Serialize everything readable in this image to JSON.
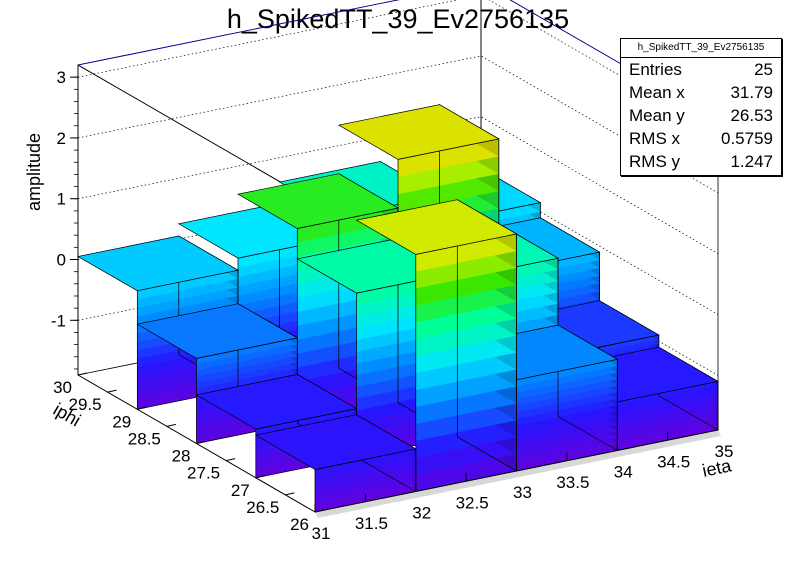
{
  "title": "h_SpikedTT_39_Ev2756135",
  "stats": {
    "name": "h_SpikedTT_39_Ev2756135",
    "rows": [
      {
        "label": "Entries",
        "value": "25"
      },
      {
        "label": "Mean x",
        "value": "31.79"
      },
      {
        "label": "Mean y",
        "value": "26.53"
      },
      {
        "label": "RMS x",
        "value": "0.5759"
      },
      {
        "label": "RMS y",
        "value": "1.247"
      }
    ]
  },
  "chart_data": {
    "type": "lego3d",
    "title": "h_SpikedTT_39_Ev2756135",
    "xlabel": "ieta",
    "ylabel": "iphi",
    "zlabel": "amplitude",
    "x_ticks": [
      "31",
      "31.5",
      "32",
      "32.5",
      "33",
      "33.5",
      "34",
      "34.5",
      "35"
    ],
    "y_ticks": [
      "26",
      "26.5",
      "27",
      "27.5",
      "28",
      "28.5",
      "29",
      "29.5",
      "30"
    ],
    "z_ticks": [
      "-1",
      "0",
      "1",
      "2",
      "3"
    ],
    "xlim": [
      31,
      35
    ],
    "ylim": [
      26,
      30
    ],
    "zlim": [
      -1.9,
      3.2
    ],
    "x_edges": [
      31,
      32,
      33,
      34,
      35
    ],
    "y_edges": [
      26,
      27,
      28,
      29,
      30
    ],
    "cells": [
      {
        "x": 31.5,
        "y": 29.5,
        "z": 0.05
      },
      {
        "x": 32.5,
        "y": 29.5,
        "z": 0.25
      },
      {
        "x": 33.5,
        "y": 29.5,
        "z": 0.6
      },
      {
        "x": 34.5,
        "y": 29.5,
        "z": 0.15
      },
      {
        "x": 31.5,
        "y": 28.5,
        "z": -0.5
      },
      {
        "x": 32.5,
        "y": 28.5,
        "z": 1.3
      },
      {
        "x": 33.5,
        "y": 28.5,
        "z": 2.1
      },
      {
        "x": 34.5,
        "y": 28.5,
        "z": -0.1
      },
      {
        "x": 31.5,
        "y": 27.5,
        "z": -1.1
      },
      {
        "x": 32.5,
        "y": 27.5,
        "z": 0.8
      },
      {
        "x": 33.5,
        "y": 27.5,
        "z": 0.7
      },
      {
        "x": 34.5,
        "y": 27.5,
        "z": -0.9
      },
      {
        "x": 31.5,
        "y": 26.5,
        "z": -1.2
      },
      {
        "x": 32.5,
        "y": 26.5,
        "z": 2.0
      },
      {
        "x": 33.5,
        "y": 26.5,
        "z": -0.4
      },
      {
        "x": 34.5,
        "y": 26.5,
        "z": -1.1
      }
    ],
    "palette": "rainbow"
  }
}
